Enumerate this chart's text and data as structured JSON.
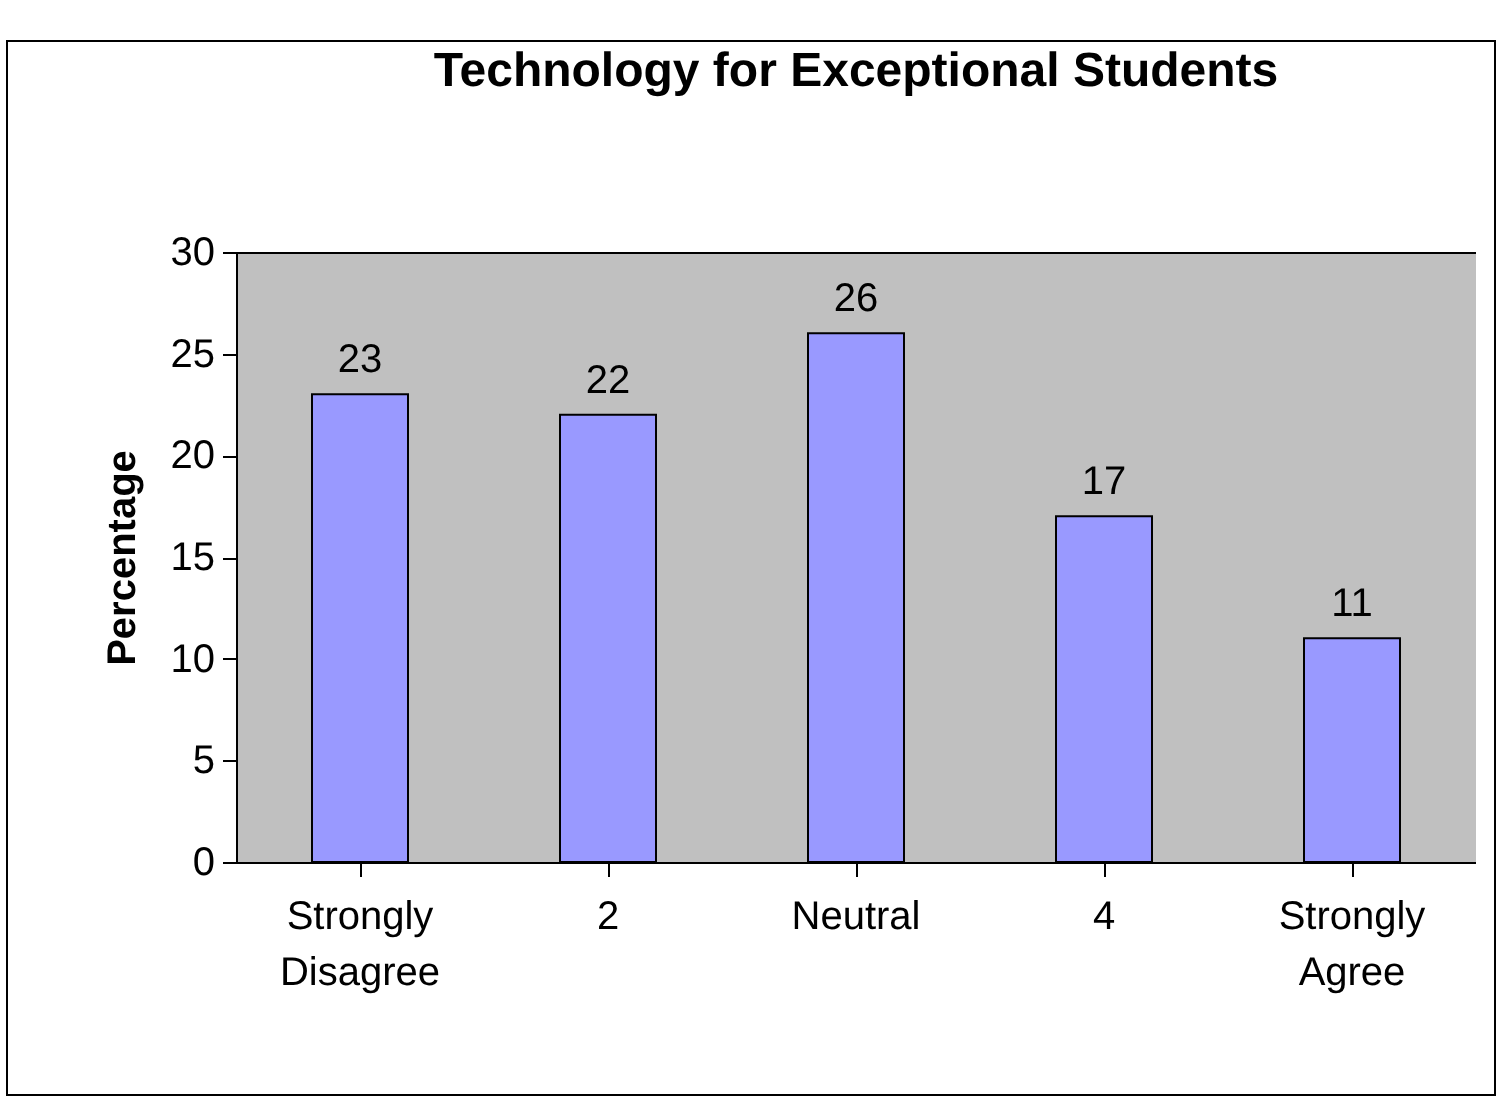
{
  "chart_data": {
    "type": "bar",
    "title": "Technology for Exceptional Students",
    "ylabel": "Percentage",
    "categories": [
      "Strongly Disagree",
      "2",
      "Neutral",
      "4",
      "Strongly Agree"
    ],
    "values": [
      23,
      22,
      26,
      17,
      11
    ],
    "color": "#9999ff",
    "ylim": [
      0,
      30
    ],
    "yticks": [
      0,
      5,
      10,
      15,
      20,
      25,
      30
    ],
    "grid": false,
    "data_labels": true
  }
}
